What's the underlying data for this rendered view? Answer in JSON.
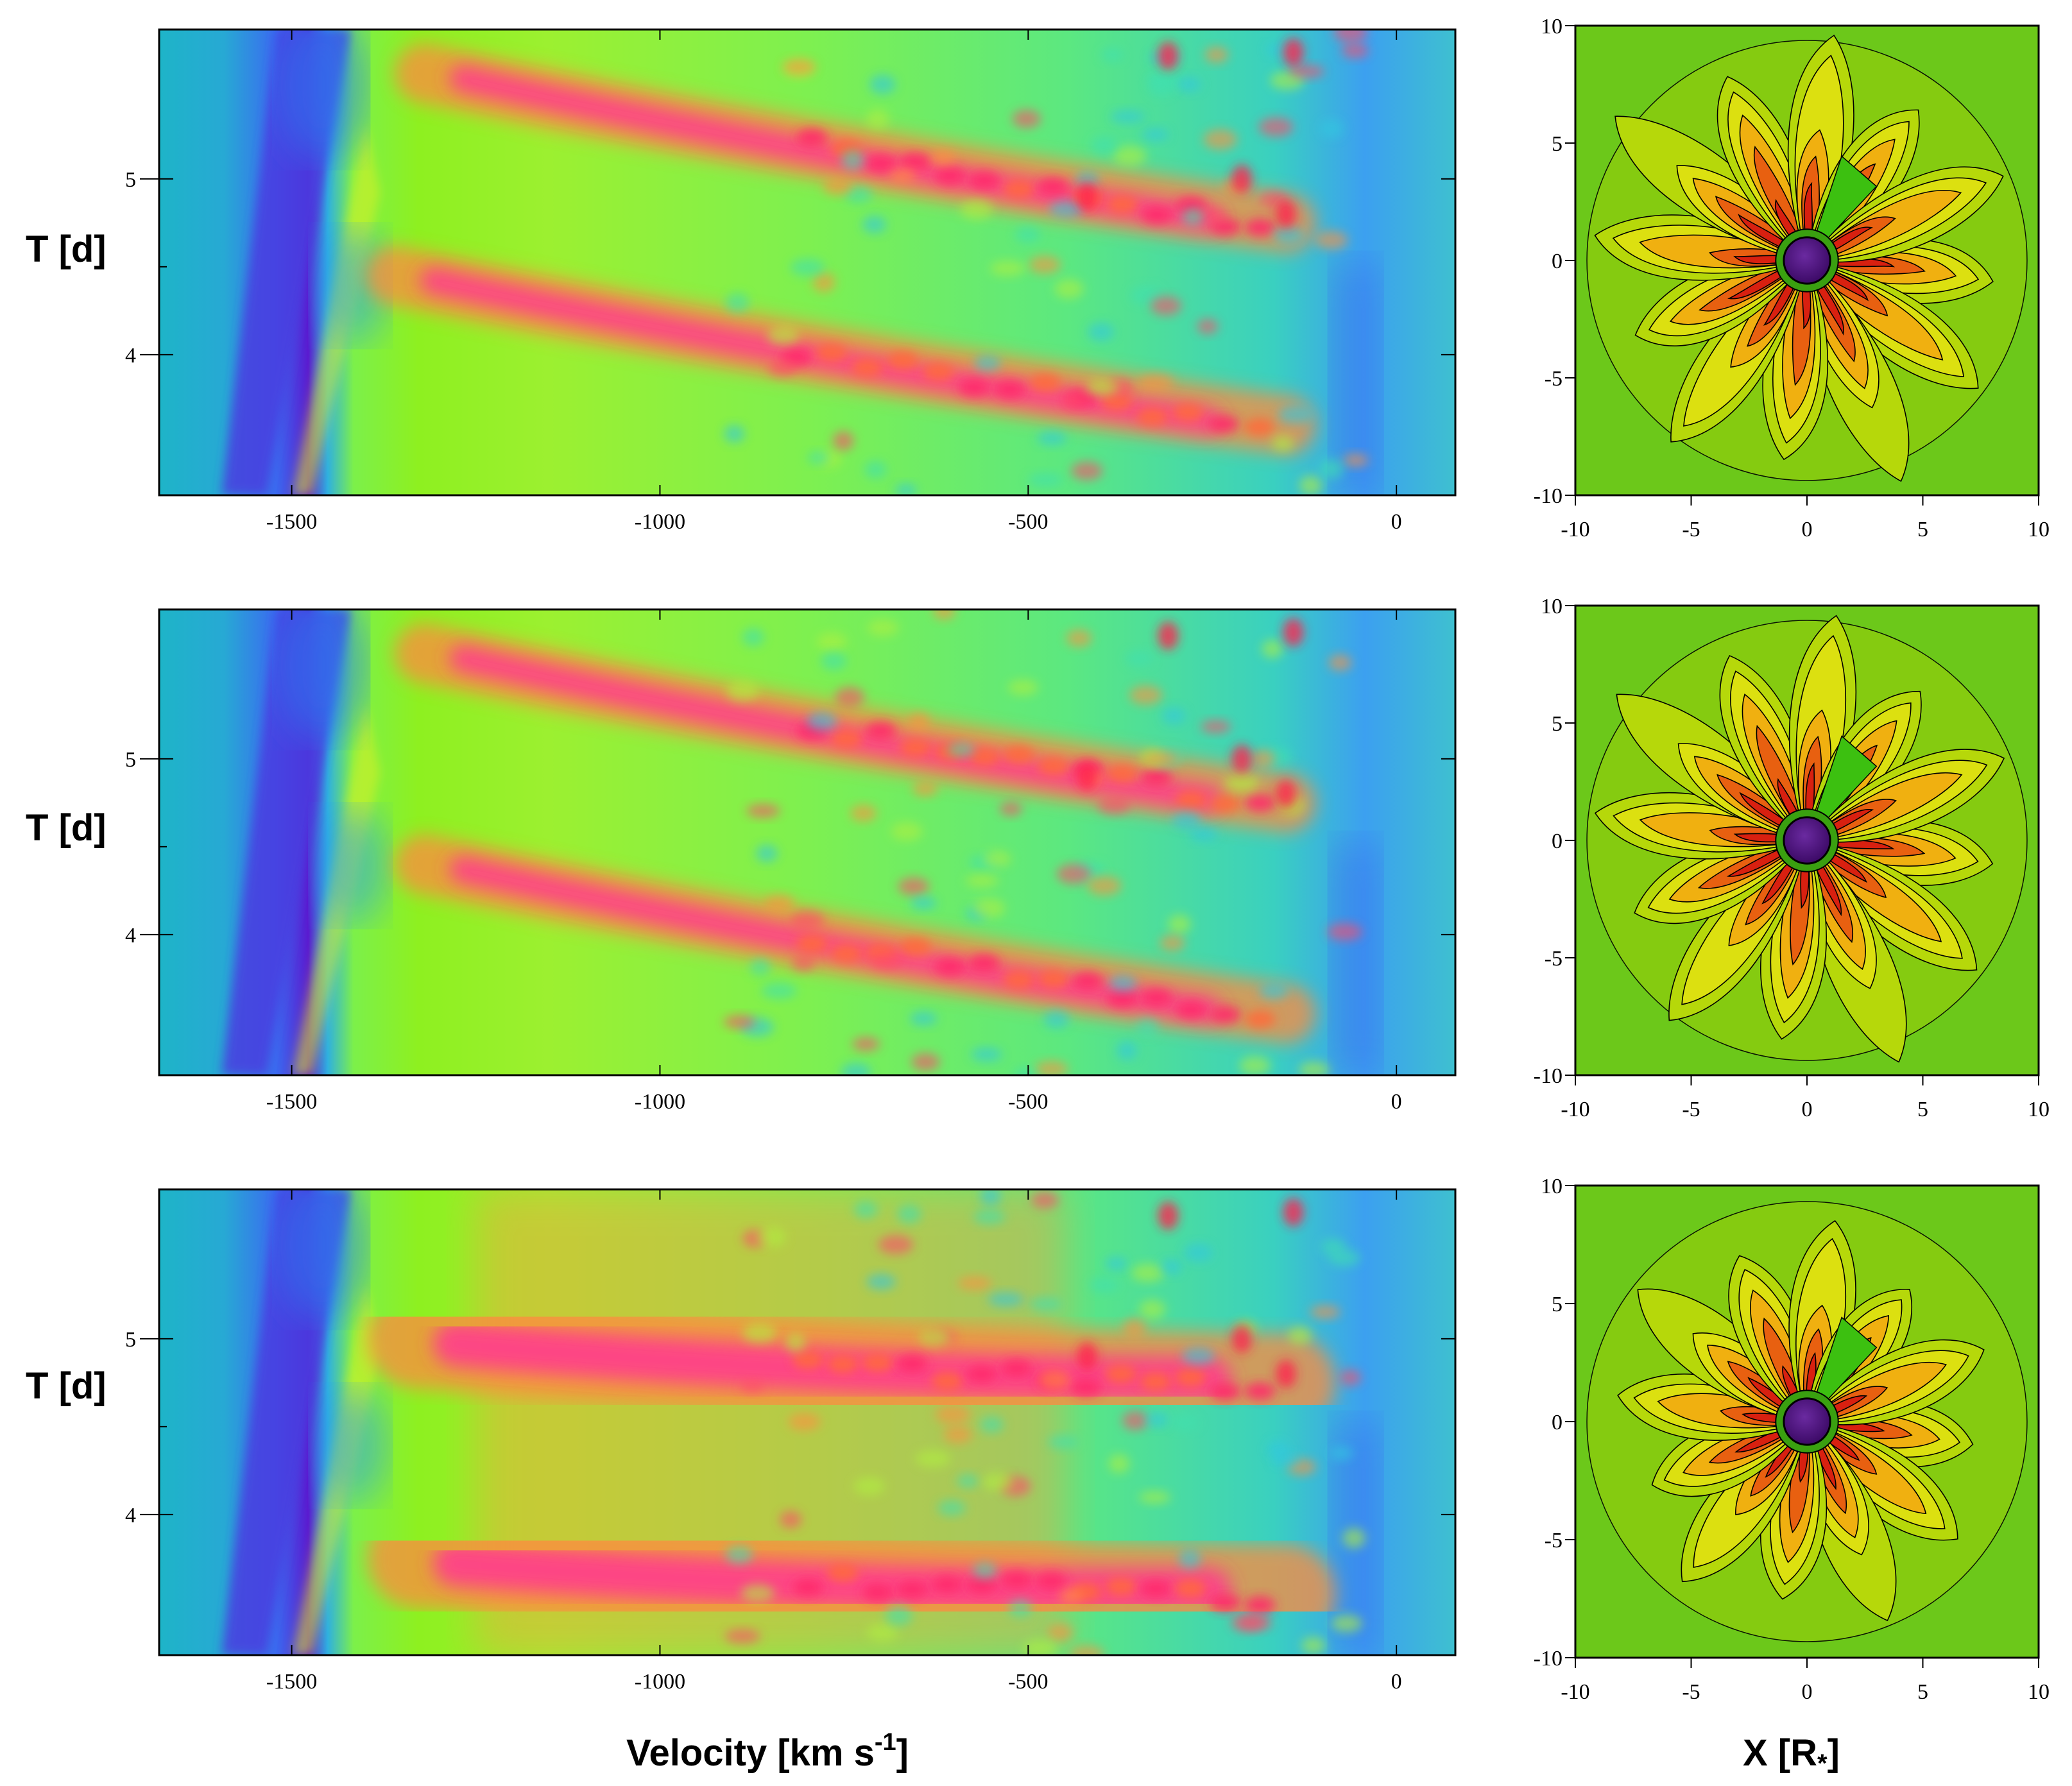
{
  "figure": {
    "ylabel": "T [d]",
    "xlabel_left": "Velocity [km s",
    "xlabel_left_sup": "-1",
    "xlabel_left_end": "]",
    "xlabel_right": "X [R",
    "xlabel_right_sub": "*",
    "xlabel_right_end": "]"
  },
  "chart_data": [
    {
      "type": "heatmap",
      "panel": "top-left",
      "xlim": [
        -1680,
        80
      ],
      "ylim": [
        3.2,
        5.85
      ],
      "xticks": [
        -1500,
        -1000,
        -500,
        0
      ],
      "yticks": [
        4,
        5
      ],
      "xlabel": "",
      "ylabel": "T [d]",
      "features": [
        {
          "kind": "absorption-edge",
          "v_start": -1560,
          "v_end": -1490
        },
        {
          "kind": "dac",
          "t_start": 5.6,
          "v_start": -1320,
          "t_end": 4.75,
          "v_end": -150
        },
        {
          "kind": "dac",
          "t_start": 4.45,
          "v_start": -1360,
          "t_end": 3.6,
          "v_end": -150
        }
      ]
    },
    {
      "type": "heatmap",
      "panel": "middle-left",
      "xlim": [
        -1680,
        80
      ],
      "ylim": [
        3.2,
        5.85
      ],
      "xticks": [
        -1500,
        -1000,
        -500,
        0
      ],
      "yticks": [
        4,
        5
      ],
      "xlabel": "",
      "ylabel": "T [d]",
      "features": [
        {
          "kind": "absorption-edge",
          "v_start": -1560,
          "v_end": -1490
        },
        {
          "kind": "dac",
          "t_start": 5.6,
          "v_start": -1320,
          "t_end": 4.75,
          "v_end": -150
        },
        {
          "kind": "dac",
          "t_start": 4.4,
          "v_start": -1320,
          "t_end": 3.55,
          "v_end": -150
        }
      ]
    },
    {
      "type": "heatmap",
      "panel": "bottom-left",
      "xlim": [
        -1680,
        80
      ],
      "ylim": [
        3.2,
        5.85
      ],
      "xticks": [
        -1500,
        -1000,
        -500,
        0
      ],
      "yticks": [
        4,
        5
      ],
      "xlabel": "Velocity [km s-1]",
      "ylabel": "T [d]",
      "features": [
        {
          "kind": "absorption-edge",
          "v_start": -1560,
          "v_end": -1490
        },
        {
          "kind": "dac",
          "t_start": 5.0,
          "v_start": -1330,
          "t_end": 4.75,
          "v_end": -150
        },
        {
          "kind": "dac",
          "t_start": 3.75,
          "v_start": -1330,
          "t_end": 3.55,
          "v_end": -150
        }
      ]
    },
    {
      "type": "contour",
      "panel": "top-right",
      "xlim": [
        -10,
        10
      ],
      "ylim": [
        -10,
        10
      ],
      "xticks": [
        -10,
        -5,
        0,
        5,
        10
      ],
      "yticks": [
        -10,
        -5,
        0,
        5,
        10
      ],
      "star_radius": 1,
      "n_arms": 12,
      "arm_length": 9.5,
      "twist_deg": 18
    },
    {
      "type": "contour",
      "panel": "middle-right",
      "xlim": [
        -10,
        10
      ],
      "ylim": [
        -10,
        10
      ],
      "xticks": [
        -10,
        -5,
        0,
        5,
        10
      ],
      "yticks": [
        -10,
        -5,
        0,
        5,
        10
      ],
      "star_radius": 1,
      "n_arms": 12,
      "arm_length": 9.5,
      "twist_deg": 12
    },
    {
      "type": "contour",
      "panel": "bottom-right",
      "xlim": [
        -10,
        10
      ],
      "ylim": [
        -10,
        10
      ],
      "xticks": [
        -10,
        -5,
        0,
        5,
        10
      ],
      "yticks": [
        -10,
        -5,
        0,
        5,
        10
      ],
      "xlabel": "X [R*]",
      "star_radius": 1,
      "n_arms": 12,
      "arm_length": 8.5,
      "twist_deg": 6
    }
  ]
}
